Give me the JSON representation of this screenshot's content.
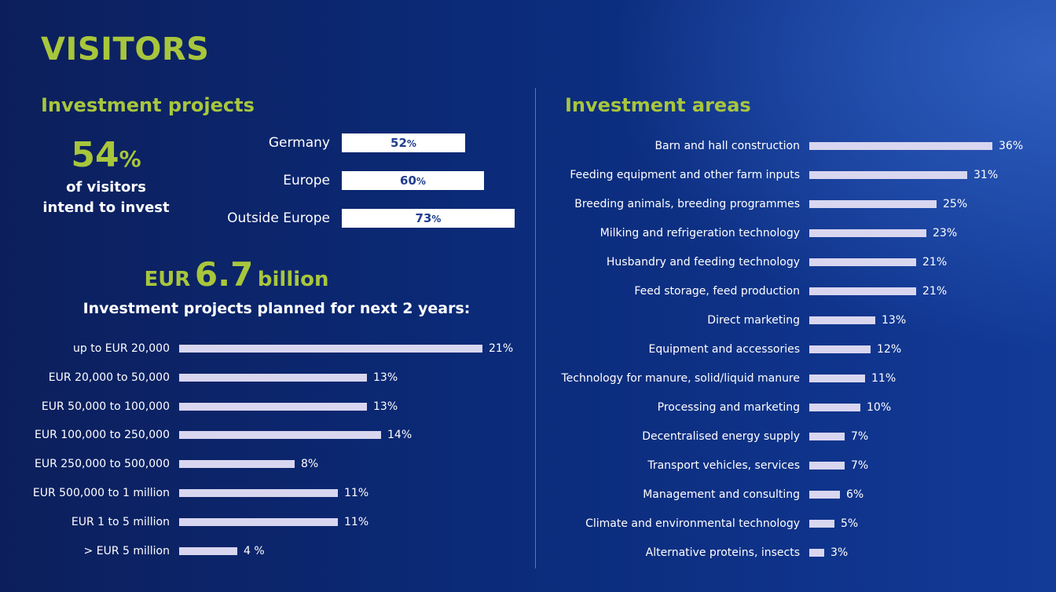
{
  "page": {
    "title": "VISITORS"
  },
  "investment_projects": {
    "heading": "Investment projects",
    "share_number": "54",
    "share_symbol": "%",
    "share_text_line1": "of visitors",
    "share_text_line2": "intend to invest",
    "regions": [
      {
        "label": "Germany",
        "value": 52,
        "display": "52"
      },
      {
        "label": "Europe",
        "value": 60,
        "display": "60"
      },
      {
        "label": "Outside Europe",
        "value": 73,
        "display": "73"
      }
    ],
    "percent_sign": "%",
    "headline_prefix": "EUR",
    "headline_amount": "6.7",
    "headline_suffix": "billion",
    "subheading": "Investment projects planned for next 2 years:"
  },
  "investment_areas": {
    "heading": "Investment areas"
  },
  "chart_data": [
    {
      "type": "bar",
      "orientation": "horizontal",
      "categories": [
        "up to EUR 20,000",
        "EUR 20,000 to 50,000",
        "EUR 50,000 to 100,000",
        "EUR 100,000 to 250,000",
        "EUR 250,000 to 500,000",
        "EUR 500,000 to 1 million",
        "EUR 1 to 5 million",
        "> EUR 5 million"
      ],
      "values": [
        21,
        13,
        13,
        14,
        8,
        11,
        11,
        4
      ],
      "value_labels": [
        "21%",
        "13%",
        "13%",
        "14%",
        "8%",
        "11%",
        "11%",
        "4 %"
      ],
      "bar_color": "#d9d6f0"
    },
    {
      "type": "bar",
      "orientation": "horizontal",
      "categories": [
        "Barn and hall construction",
        "Feeding equipment and other farm inputs",
        "Breeding animals, breeding programmes",
        "Milking and refrigeration technology",
        "Husbandry and feeding technology",
        "Feed storage, feed production",
        "Direct marketing",
        "Equipment and accessories",
        "Technology for manure, solid/liquid manure",
        "Processing and marketing",
        "Decentralised energy supply",
        "Transport vehicles, services",
        "Management and consulting",
        "Climate and environmental technology",
        "Alternative proteins, insects"
      ],
      "values": [
        36,
        31,
        25,
        23,
        21,
        21,
        13,
        12,
        11,
        10,
        7,
        7,
        6,
        5,
        3
      ],
      "value_labels": [
        "36%",
        "31%",
        "25%",
        "23%",
        "21%",
        "21%",
        "13%",
        "12%",
        "11%",
        "10%",
        "7%",
        "7%",
        "6%",
        "5%",
        "3%"
      ],
      "bar_color": "#d9d6f0"
    }
  ],
  "colors": {
    "accent": "#a8c63c",
    "background_dark": "#0c1f5c",
    "background_light": "#123a98",
    "bar": "#d9d6f0",
    "bar_text": "#203d8f"
  }
}
